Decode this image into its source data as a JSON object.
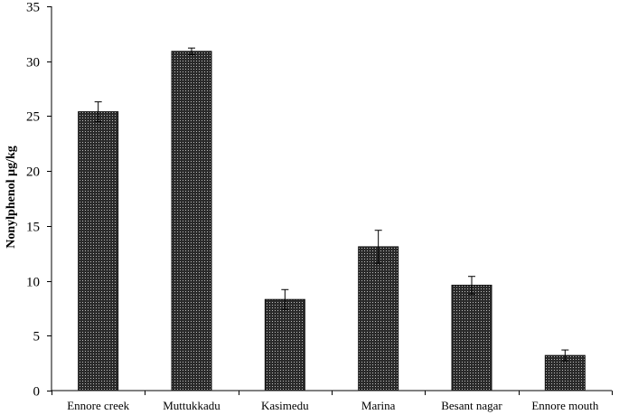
{
  "chart_data": {
    "type": "bar",
    "title": "",
    "xlabel": "",
    "ylabel": "Nonylphenol µg/kg",
    "ylim": [
      0,
      35
    ],
    "yticks": [
      0,
      5,
      10,
      15,
      20,
      25,
      30,
      35
    ],
    "grid": false,
    "legend": "none",
    "categories": [
      "Ennore creek",
      "Muttukkadu",
      "Kasimedu",
      "Marina",
      "Besant nagar",
      "Ennore mouth"
    ],
    "values": [
      25.4,
      30.9,
      8.3,
      13.1,
      9.6,
      3.2
    ],
    "errors": [
      0.9,
      0.3,
      0.9,
      1.5,
      0.8,
      0.5
    ],
    "bar_color": "#222222"
  }
}
